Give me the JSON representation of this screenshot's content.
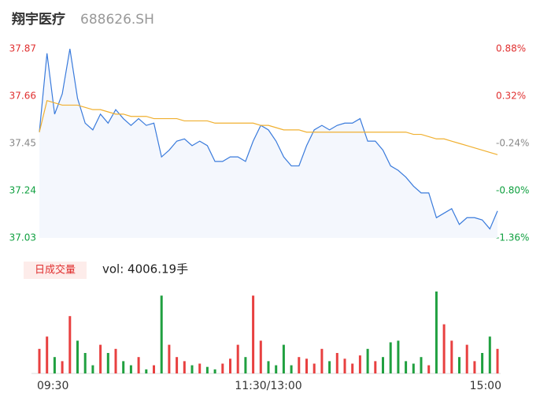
{
  "chart_data": {
    "type": "intraday",
    "title": "翔宇医疗",
    "subtitle": "688626.SH",
    "categories": [
      "09:30",
      null,
      null,
      null,
      null,
      null,
      null,
      null,
      null,
      null,
      null,
      null,
      null,
      null,
      null,
      null,
      null,
      null,
      null,
      null,
      null,
      null,
      null,
      null,
      null,
      null,
      null,
      null,
      null,
      null,
      "11:30/13:00",
      null,
      null,
      null,
      null,
      null,
      null,
      null,
      null,
      null,
      null,
      null,
      null,
      null,
      null,
      null,
      null,
      null,
      null,
      null,
      null,
      null,
      null,
      null,
      null,
      null,
      null,
      null,
      null,
      null,
      "15:00"
    ],
    "series": [
      {
        "name": "price",
        "color": "#3a7bdc",
        "values": [
          37.5,
          37.85,
          37.58,
          37.67,
          37.87,
          37.65,
          37.54,
          37.51,
          37.58,
          37.54,
          37.6,
          37.56,
          37.53,
          37.56,
          37.53,
          37.54,
          37.39,
          37.42,
          37.46,
          37.47,
          37.44,
          37.46,
          37.44,
          37.37,
          37.37,
          37.39,
          37.39,
          37.37,
          37.46,
          37.53,
          37.51,
          37.46,
          37.39,
          37.35,
          37.35,
          37.44,
          37.51,
          37.53,
          37.51,
          37.53,
          37.54,
          37.54,
          37.56,
          37.46,
          37.46,
          37.42,
          37.35,
          37.33,
          37.3,
          37.26,
          37.23,
          37.23,
          37.12,
          37.14,
          37.16,
          37.09,
          37.12,
          37.12,
          37.11,
          37.07,
          37.15
        ]
      },
      {
        "name": "average",
        "color": "#f0b030",
        "values": [
          37.5,
          37.64,
          37.63,
          37.62,
          37.62,
          37.62,
          37.61,
          37.6,
          37.6,
          37.59,
          37.58,
          37.58,
          37.57,
          37.57,
          37.57,
          37.56,
          37.56,
          37.56,
          37.56,
          37.55,
          37.55,
          37.55,
          37.55,
          37.54,
          37.54,
          37.54,
          37.54,
          37.54,
          37.54,
          37.53,
          37.53,
          37.52,
          37.51,
          37.51,
          37.51,
          37.5,
          37.5,
          37.5,
          37.5,
          37.5,
          37.5,
          37.5,
          37.5,
          37.5,
          37.5,
          37.5,
          37.5,
          37.5,
          37.5,
          37.49,
          37.49,
          37.48,
          37.47,
          37.47,
          37.46,
          37.45,
          37.44,
          37.43,
          37.42,
          37.41,
          37.4
        ]
      }
    ],
    "volume": {
      "values": [
        30,
        45,
        20,
        15,
        70,
        40,
        25,
        10,
        35,
        25,
        30,
        15,
        10,
        20,
        5,
        10,
        95,
        35,
        20,
        15,
        10,
        12,
        8,
        5,
        12,
        18,
        35,
        20,
        95,
        40,
        15,
        10,
        35,
        10,
        20,
        18,
        12,
        30,
        15,
        25,
        18,
        12,
        22,
        30,
        15,
        20,
        38,
        40,
        15,
        12,
        20,
        10,
        100,
        60,
        40,
        20,
        35,
        15,
        25,
        45,
        30
      ],
      "up_color": "#e84040",
      "down_color": "#20a040",
      "label": "日成交量",
      "info": "vol: 4006.19手"
    },
    "ylim": [
      37.03,
      37.87
    ],
    "yticks": [
      37.87,
      37.66,
      37.45,
      37.24,
      37.03
    ],
    "ytick_colors": [
      "#e03030",
      "#e03030",
      "#888888",
      "#10a040",
      "#10a040"
    ],
    "y2lim": [
      -1.36,
      0.88
    ],
    "y2ticks": [
      {
        "value": 0.88,
        "label": "0.88%"
      },
      {
        "value": 0.32,
        "label": "0.32%"
      },
      {
        "value": -0.24,
        "label": "-0.24%"
      },
      {
        "value": -0.8,
        "label": "-0.80%"
      },
      {
        "value": -1.36,
        "label": "-1.36%"
      }
    ]
  }
}
